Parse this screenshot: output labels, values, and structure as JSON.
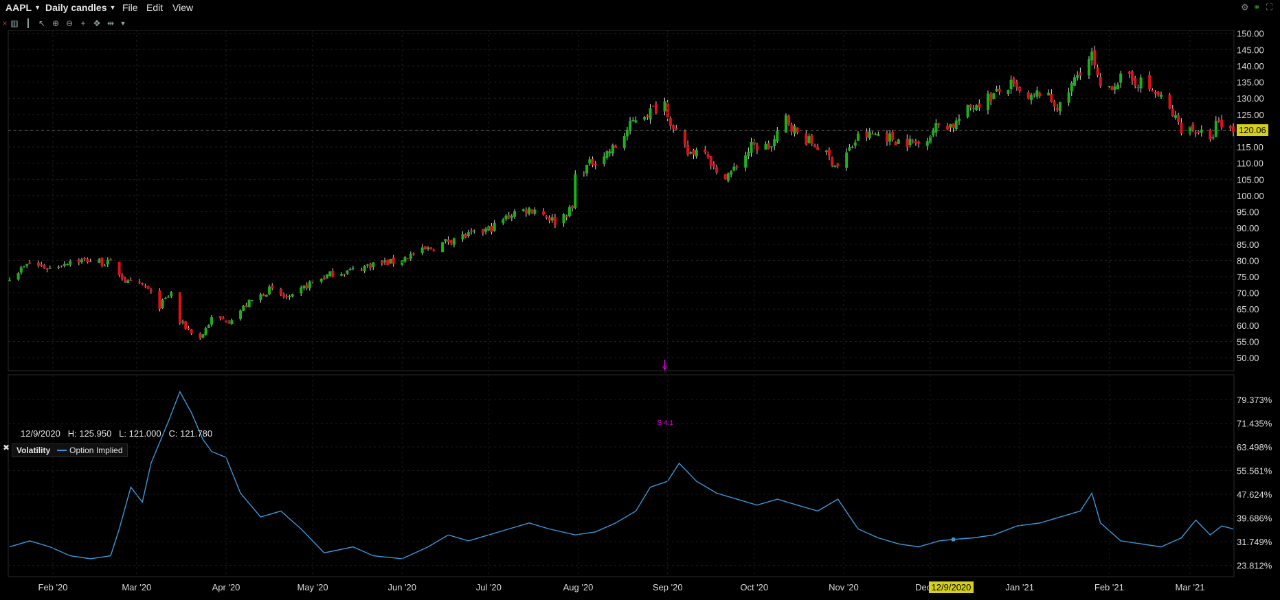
{
  "menubar": {
    "symbol": "AAPL",
    "chart_type": "Daily candles",
    "menus": [
      "File",
      "Edit",
      "View"
    ]
  },
  "toolbar": {
    "icons": [
      "close-icon",
      "bar-chart-icon",
      "candle-icon",
      "cursor-icon",
      "zoom-in-icon",
      "zoom-out-icon",
      "crosshair-icon",
      "move-icon",
      "split-icon",
      "dropdown-icon"
    ],
    "right_icons": [
      "settings-icon",
      "link-icon",
      "expand-icon"
    ]
  },
  "ohlc_readout": {
    "date": "12/9/2020",
    "high_label": "H:",
    "high": "125.950",
    "low_label": "L:",
    "low": "121.000",
    "close_label": "C:",
    "close": "121.780"
  },
  "split_annotation": "S 4:1",
  "current_price": "120.06",
  "hover_date": "12/9/2020",
  "volatility": {
    "title": "Volatility",
    "series_name": "Option Implied"
  },
  "colors": {
    "up": "#19b219",
    "down": "#e0101a",
    "iv_line": "#3a9ad9",
    "highlight": "#d6d01a",
    "split": "#e000e0"
  },
  "chart_data": [
    {
      "type": "candlestick",
      "title": "",
      "ylim": [
        46,
        151
      ],
      "y_ticks": [
        "150.00",
        "145.00",
        "140.00",
        "135.00",
        "130.00",
        "125.00",
        "120.00",
        "115.00",
        "110.00",
        "105.00",
        "100.00",
        "95.00",
        "90.00",
        "85.00",
        "80.00",
        "75.00",
        "70.00",
        "65.00",
        "60.00",
        "55.00",
        "50.00"
      ],
      "x_ticks": [
        "Feb '20",
        "Mar '20",
        "Apr '20",
        "May '20",
        "Jun '20",
        "Jul '20",
        "Aug '20",
        "Sep '20",
        "Oct '20",
        "Nov '20",
        "Dec '20",
        "Jan '21",
        "Feb '21",
        "Mar '21"
      ],
      "x_range": [
        "2020-01-17",
        "2021-03-16"
      ],
      "close_path": [
        [
          "2020-01-17",
          75.0
        ],
        [
          "2020-01-24",
          79.0
        ],
        [
          "2020-01-31",
          77.5
        ],
        [
          "2020-02-07",
          80.0
        ],
        [
          "2020-02-14",
          80.0
        ],
        [
          "2020-02-21",
          79.0
        ],
        [
          "2020-02-27",
          73.0
        ],
        [
          "2020-03-04",
          72.0
        ],
        [
          "2020-03-09",
          66.0
        ],
        [
          "2020-03-13",
          70.0
        ],
        [
          "2020-03-16",
          61.0
        ],
        [
          "2020-03-20",
          58.0
        ],
        [
          "2020-03-23",
          56.0
        ],
        [
          "2020-03-27",
          62.0
        ],
        [
          "2020-04-02",
          61.5
        ],
        [
          "2020-04-09",
          67.0
        ],
        [
          "2020-04-16",
          71.0
        ],
        [
          "2020-04-23",
          68.0
        ],
        [
          "2020-04-30",
          73.0
        ],
        [
          "2020-05-08",
          76.0
        ],
        [
          "2020-05-15",
          77.0
        ],
        [
          "2020-05-22",
          79.0
        ],
        [
          "2020-05-29",
          79.5
        ],
        [
          "2020-06-05",
          82.0
        ],
        [
          "2020-06-12",
          84.0
        ],
        [
          "2020-06-19",
          87.0
        ],
        [
          "2020-06-26",
          88.0
        ],
        [
          "2020-07-02",
          90.0
        ],
        [
          "2020-07-10",
          95.0
        ],
        [
          "2020-07-17",
          96.0
        ],
        [
          "2020-07-24",
          92.0
        ],
        [
          "2020-07-30",
          96.0
        ],
        [
          "2020-07-31",
          106.0
        ],
        [
          "2020-08-07",
          111.0
        ],
        [
          "2020-08-14",
          115.0
        ],
        [
          "2020-08-21",
          124.0
        ],
        [
          "2020-08-26",
          126.0
        ],
        [
          "2020-08-31",
          129.0
        ],
        [
          "2020-09-03",
          120.0
        ],
        [
          "2020-09-08",
          113.0
        ],
        [
          "2020-09-14",
          115.0
        ],
        [
          "2020-09-18",
          106.0
        ],
        [
          "2020-09-23",
          107.0
        ],
        [
          "2020-09-30",
          115.0
        ],
        [
          "2020-10-07",
          115.0
        ],
        [
          "2020-10-12",
          124.0
        ],
        [
          "2020-10-16",
          119.0
        ],
        [
          "2020-10-23",
          115.0
        ],
        [
          "2020-10-30",
          109.0
        ],
        [
          "2020-11-06",
          118.0
        ],
        [
          "2020-11-13",
          119.0
        ],
        [
          "2020-11-20",
          117.0
        ],
        [
          "2020-11-27",
          116.0
        ],
        [
          "2020-12-04",
          122.0
        ],
        [
          "2020-12-09",
          121.8
        ],
        [
          "2020-12-16",
          128.0
        ],
        [
          "2020-12-23",
          131.0
        ],
        [
          "2020-12-29",
          134.0
        ],
        [
          "2021-01-04",
          129.0
        ],
        [
          "2021-01-08",
          132.0
        ],
        [
          "2021-01-15",
          127.0
        ],
        [
          "2021-01-22",
          139.0
        ],
        [
          "2021-01-26",
          143.0
        ],
        [
          "2021-01-29",
          132.0
        ],
        [
          "2021-02-05",
          136.0
        ],
        [
          "2021-02-12",
          135.0
        ],
        [
          "2021-02-19",
          130.0
        ],
        [
          "2021-02-26",
          121.0
        ],
        [
          "2021-03-04",
          120.0
        ],
        [
          "2021-03-08",
          116.0
        ],
        [
          "2021-03-10",
          122.0
        ],
        [
          "2021-03-16",
          120.06
        ]
      ]
    },
    {
      "type": "line",
      "title": "Volatility",
      "ylim": [
        20,
        84
      ],
      "y_ticks": [
        "79.373%",
        "71.435%",
        "63.498%",
        "55.561%",
        "47.624%",
        "39.686%",
        "31.749%",
        "23.812%"
      ],
      "series": [
        {
          "name": "Option Implied",
          "points": [
            [
              "2020-01-17",
              30
            ],
            [
              "2020-01-24",
              32
            ],
            [
              "2020-01-31",
              30
            ],
            [
              "2020-02-07",
              27
            ],
            [
              "2020-02-14",
              26
            ],
            [
              "2020-02-21",
              27
            ],
            [
              "2020-02-24",
              36
            ],
            [
              "2020-02-28",
              50
            ],
            [
              "2020-03-03",
              45
            ],
            [
              "2020-03-06",
              58
            ],
            [
              "2020-03-12",
              72
            ],
            [
              "2020-03-16",
              82
            ],
            [
              "2020-03-20",
              75
            ],
            [
              "2020-03-24",
              66
            ],
            [
              "2020-03-27",
              62
            ],
            [
              "2020-04-01",
              60
            ],
            [
              "2020-04-06",
              48
            ],
            [
              "2020-04-13",
              40
            ],
            [
              "2020-04-20",
              42
            ],
            [
              "2020-04-27",
              36
            ],
            [
              "2020-05-05",
              28
            ],
            [
              "2020-05-15",
              30
            ],
            [
              "2020-05-22",
              27
            ],
            [
              "2020-06-01",
              26
            ],
            [
              "2020-06-10",
              30
            ],
            [
              "2020-06-17",
              34
            ],
            [
              "2020-06-24",
              32
            ],
            [
              "2020-07-01",
              34
            ],
            [
              "2020-07-08",
              36
            ],
            [
              "2020-07-15",
              38
            ],
            [
              "2020-07-22",
              36
            ],
            [
              "2020-07-31",
              34
            ],
            [
              "2020-08-07",
              35
            ],
            [
              "2020-08-14",
              38
            ],
            [
              "2020-08-21",
              42
            ],
            [
              "2020-08-26",
              50
            ],
            [
              "2020-09-01",
              52
            ],
            [
              "2020-09-05",
              58
            ],
            [
              "2020-09-11",
              52
            ],
            [
              "2020-09-18",
              48
            ],
            [
              "2020-09-25",
              46
            ],
            [
              "2020-10-02",
              44
            ],
            [
              "2020-10-09",
              46
            ],
            [
              "2020-10-16",
              44
            ],
            [
              "2020-10-23",
              42
            ],
            [
              "2020-10-30",
              46
            ],
            [
              "2020-11-06",
              36
            ],
            [
              "2020-11-13",
              33
            ],
            [
              "2020-11-20",
              31
            ],
            [
              "2020-11-27",
              30
            ],
            [
              "2020-12-04",
              32
            ],
            [
              "2020-12-09",
              32.5
            ],
            [
              "2020-12-16",
              33
            ],
            [
              "2020-12-23",
              34
            ],
            [
              "2020-12-31",
              37
            ],
            [
              "2021-01-08",
              38
            ],
            [
              "2021-01-15",
              40
            ],
            [
              "2021-01-22",
              42
            ],
            [
              "2021-01-26",
              48
            ],
            [
              "2021-01-29",
              38
            ],
            [
              "2021-02-05",
              32
            ],
            [
              "2021-02-12",
              31
            ],
            [
              "2021-02-19",
              30
            ],
            [
              "2021-02-26",
              33
            ],
            [
              "2021-03-03",
              39
            ],
            [
              "2021-03-08",
              34
            ],
            [
              "2021-03-12",
              37
            ],
            [
              "2021-03-16",
              36
            ]
          ]
        }
      ]
    }
  ]
}
